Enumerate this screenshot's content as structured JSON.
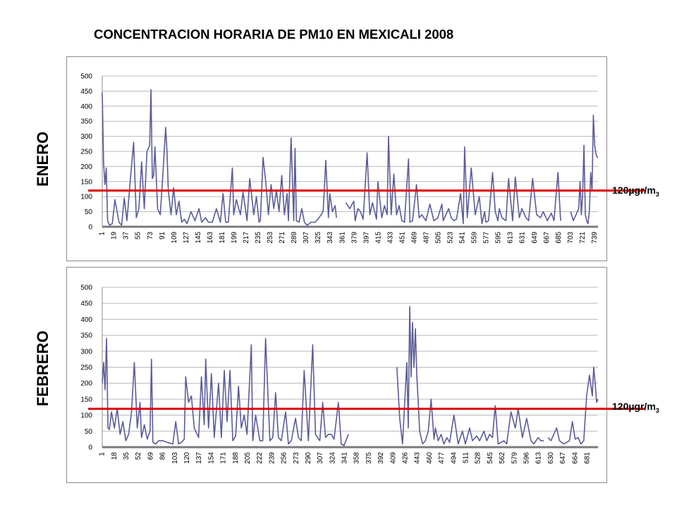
{
  "title": "CONCENTRACION HORARIA DE PM10 EN MEXICALI  2008",
  "colors": {
    "series": "#5b5b98",
    "threshold": "#e00000",
    "grid": "#b8b8b8",
    "axis": "#8c8c8c"
  },
  "chart_data": [
    {
      "type": "line",
      "month_label": "ENERO",
      "threshold": {
        "value": 120,
        "label_main": "120µgr/m",
        "label_sub": "3"
      },
      "ylim": [
        0,
        500
      ],
      "y_ticks": [
        0,
        50,
        100,
        150,
        200,
        250,
        300,
        350,
        400,
        450,
        500
      ],
      "x_range": [
        1,
        744
      ],
      "x_ticks": [
        1,
        19,
        37,
        55,
        73,
        91,
        109,
        127,
        145,
        163,
        181,
        199,
        217,
        235,
        253,
        271,
        289,
        307,
        325,
        343,
        361,
        379,
        397,
        415,
        433,
        451,
        469,
        487,
        505,
        523,
        541,
        559,
        577,
        595,
        613,
        631,
        649,
        667,
        685,
        703,
        721,
        739
      ],
      "grid": true,
      "legend": "none",
      "series": [
        {
          "x": [
            1,
            3,
            5,
            7,
            9,
            12,
            16,
            20,
            26,
            30,
            34,
            38,
            44,
            48,
            52,
            56,
            60,
            64,
            68,
            72,
            74,
            76,
            78,
            80,
            84,
            88,
            92,
            96,
            98,
            100,
            104,
            108,
            112,
            116,
            120,
            124,
            128,
            134,
            140,
            146,
            150,
            156,
            160,
            166,
            172,
            178,
            182,
            186,
            190,
            196,
            198,
            202,
            208,
            212,
            218,
            222,
            228,
            232,
            236,
            238,
            242,
            246,
            250,
            254,
            258,
            262,
            266,
            270,
            274,
            278,
            280,
            284,
            288,
            290,
            292,
            296,
            300,
            304,
            308,
            314,
            320,
            326,
            332,
            336,
            340,
            342,
            346,
            350,
            352
          ],
          "y": [
            445,
            210,
            140,
            195,
            20,
            5,
            10,
            90,
            15,
            5,
            95,
            20,
            180,
            280,
            30,
            60,
            215,
            60,
            250,
            270,
            455,
            160,
            170,
            265,
            60,
            40,
            180,
            330,
            250,
            120,
            40,
            130,
            40,
            85,
            15,
            25,
            10,
            50,
            20,
            60,
            15,
            30,
            15,
            15,
            60,
            15,
            110,
            15,
            15,
            195,
            40,
            90,
            40,
            115,
            20,
            160,
            40,
            100,
            15,
            20,
            230,
            150,
            40,
            140,
            60,
            120,
            50,
            170,
            40,
            110,
            20,
            295,
            20,
            260,
            20,
            15,
            60,
            15,
            5,
            15,
            15,
            30,
            50,
            220,
            30,
            110,
            50,
            70,
            30
          ]
        },
        {
          "x": [
            366,
            372,
            378,
            380,
            384,
            388,
            392,
            398,
            402,
            406,
            412,
            414,
            420,
            424,
            428,
            430,
            434,
            438,
            442,
            446,
            450,
            454,
            460,
            462,
            466,
            472,
            476,
            480,
            486,
            492,
            498,
            504,
            510,
            512,
            518,
            520,
            524,
            528,
            532,
            538,
            542,
            544,
            548,
            554,
            560,
            566,
            570,
            574,
            576,
            580,
            586,
            590,
            594,
            596,
            600,
            606,
            610,
            616,
            620,
            626,
            630,
            636,
            640,
            646,
            652,
            658,
            662,
            668,
            674,
            678,
            684,
            688
          ],
          "y": [
            80,
            60,
            85,
            20,
            60,
            50,
            25,
            245,
            40,
            80,
            25,
            150,
            30,
            70,
            40,
            300,
            40,
            175,
            40,
            70,
            20,
            15,
            225,
            15,
            20,
            140,
            30,
            40,
            20,
            75,
            20,
            30,
            75,
            20,
            50,
            60,
            30,
            20,
            25,
            110,
            10,
            265,
            30,
            195,
            40,
            100,
            10,
            50,
            15,
            20,
            180,
            50,
            20,
            60,
            30,
            20,
            160,
            20,
            165,
            30,
            60,
            30,
            20,
            160,
            40,
            30,
            50,
            20,
            45,
            20,
            180,
            20
          ]
        },
        {
          "x": [
            703,
            707,
            711,
            715,
            717,
            719,
            721,
            723,
            725,
            727,
            729,
            731,
            733,
            735,
            737,
            739,
            741,
            743,
            744
          ],
          "y": [
            50,
            20,
            40,
            60,
            150,
            40,
            110,
            270,
            40,
            20,
            10,
            50,
            180,
            120,
            370,
            270,
            240,
            230,
            230
          ]
        }
      ]
    },
    {
      "type": "line",
      "month_label": "FEBRERO",
      "threshold": {
        "value": 120,
        "label_main": "120µgr/m",
        "label_sub": "3"
      },
      "ylim": [
        0,
        500
      ],
      "y_ticks": [
        0,
        50,
        100,
        150,
        200,
        250,
        300,
        350,
        400,
        450,
        500
      ],
      "x_range": [
        1,
        696
      ],
      "x_ticks": [
        1,
        18,
        35,
        52,
        69,
        86,
        103,
        120,
        137,
        154,
        171,
        188,
        205,
        222,
        239,
        256,
        273,
        290,
        307,
        324,
        341,
        358,
        375,
        392,
        409,
        426,
        443,
        460,
        477,
        494,
        511,
        528,
        545,
        562,
        579,
        596,
        613,
        630,
        647,
        664,
        681
      ],
      "grid": true,
      "legend": "none",
      "series": [
        {
          "x": [
            1,
            3,
            5,
            7,
            9,
            11,
            14,
            18,
            22,
            26,
            30,
            34,
            38,
            42,
            46,
            50,
            54,
            56,
            60,
            64,
            68,
            70,
            72,
            76,
            80,
            86,
            92,
            100,
            104,
            108,
            112,
            116,
            118,
            122,
            126,
            130,
            136,
            140,
            144,
            146,
            150,
            154,
            158,
            164,
            168,
            172,
            176,
            180,
            184,
            188,
            192,
            196,
            200,
            204,
            210,
            212,
            216,
            222,
            226,
            230,
            236,
            240,
            244,
            248,
            252,
            258,
            262,
            266,
            272,
            276,
            280,
            284,
            290,
            296,
            300,
            306,
            310,
            314,
            318,
            322,
            326,
            332,
            336,
            340,
            346
          ],
          "y": [
            200,
            265,
            180,
            340,
            60,
            55,
            110,
            60,
            120,
            40,
            80,
            20,
            40,
            110,
            265,
            60,
            140,
            30,
            70,
            25,
            50,
            275,
            15,
            10,
            20,
            20,
            15,
            10,
            80,
            10,
            15,
            25,
            220,
            140,
            160,
            60,
            30,
            220,
            70,
            275,
            60,
            230,
            30,
            200,
            30,
            240,
            80,
            240,
            20,
            35,
            190,
            60,
            100,
            40,
            320,
            20,
            100,
            20,
            20,
            340,
            20,
            30,
            170,
            30,
            20,
            110,
            10,
            20,
            90,
            30,
            20,
            240,
            20,
            320,
            40,
            20,
            140,
            30,
            40,
            40,
            25,
            140,
            10,
            5,
            40
          ]
        },
        {
          "x": [
            414,
            418,
            422,
            428,
            430,
            432,
            434,
            436,
            438,
            440,
            442,
            444,
            446,
            450,
            454,
            458,
            462,
            466,
            468,
            472,
            476,
            480,
            484,
            488,
            494,
            500,
            506,
            510,
            516,
            520,
            526,
            530,
            536,
            540,
            544,
            548,
            552,
            556,
            560,
            564,
            568,
            574,
            580,
            584,
            590,
            596,
            602,
            606,
            612,
            616,
            620
          ],
          "y": [
            250,
            90,
            10,
            265,
            60,
            440,
            220,
            390,
            250,
            370,
            220,
            140,
            50,
            10,
            20,
            50,
            150,
            25,
            60,
            20,
            40,
            10,
            30,
            15,
            100,
            10,
            50,
            10,
            60,
            20,
            35,
            20,
            50,
            20,
            40,
            30,
            130,
            10,
            15,
            20,
            10,
            110,
            60,
            120,
            30,
            90,
            20,
            10,
            30,
            20,
            20
          ]
        },
        {
          "x": [
            626,
            630,
            634,
            638,
            642,
            648,
            652,
            656,
            660,
            664,
            668,
            672,
            676,
            680,
            684,
            688,
            690,
            692,
            694,
            696
          ],
          "y": [
            30,
            20,
            40,
            60,
            20,
            10,
            15,
            20,
            80,
            25,
            30,
            10,
            20,
            160,
            225,
            160,
            250,
            200,
            140,
            150
          ]
        }
      ]
    }
  ]
}
